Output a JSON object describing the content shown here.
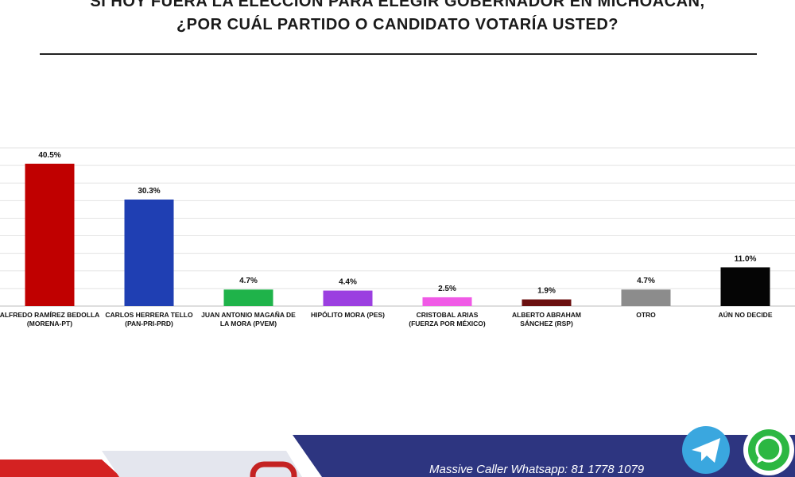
{
  "header": {
    "title_line1": "SI HOY FUERA LA ELECCIÓN PARA ELEGIR GOBERNADOR EN MICHOACÁN,",
    "title_line2": "¿POR CUÁL PARTIDO O CANDIDATO VOTARÍA USTED?"
  },
  "chart_data": {
    "type": "bar",
    "title": "SI HOY FUERA LA ELECCIÓN PARA ELEGIR GOBERNADOR EN MICHOACÁN, ¿POR CUÁL PARTIDO O CANDIDATO VOTARÍA USTED?",
    "categories": [
      [
        "ALFREDO RAMÍREZ BEDOLLA",
        "(MORENA-PT)"
      ],
      [
        "CARLOS HERRERA TELLO",
        "(PAN-PRI-PRD)"
      ],
      [
        "JUAN ANTONIO MAGAÑA DE",
        "LA MORA (PVEM)"
      ],
      [
        "HIPÓLITO MORA (PES)"
      ],
      [
        "CRISTOBAL ARIAS",
        "(FUERZA POR MÉXICO)"
      ],
      [
        "ALBERTO ABRAHAM",
        "SÁNCHEZ (RSP)"
      ],
      [
        "OTRO"
      ],
      [
        "AÚN NO DECIDE"
      ]
    ],
    "values": [
      40.5,
      30.3,
      4.7,
      4.4,
      2.5,
      1.9,
      4.7,
      11.0
    ],
    "value_labels": [
      "40.5%",
      "30.3%",
      "4.7%",
      "4.4%",
      "2.5%",
      "1.9%",
      "4.7%",
      "11.0%"
    ],
    "colors": [
      "#c00000",
      "#1f3fb3",
      "#1fb34a",
      "#9b3fe0",
      "#f05ae6",
      "#6b1010",
      "#8c8c8c",
      "#050505"
    ],
    "ylim": [
      0,
      45
    ],
    "grid": true,
    "legend": "none"
  },
  "footer": {
    "contact_text": "Massive Caller Whatsapp: 81 1778 1079",
    "telegram_icon": "telegram-icon",
    "whatsapp_icon": "whatsapp-icon"
  }
}
